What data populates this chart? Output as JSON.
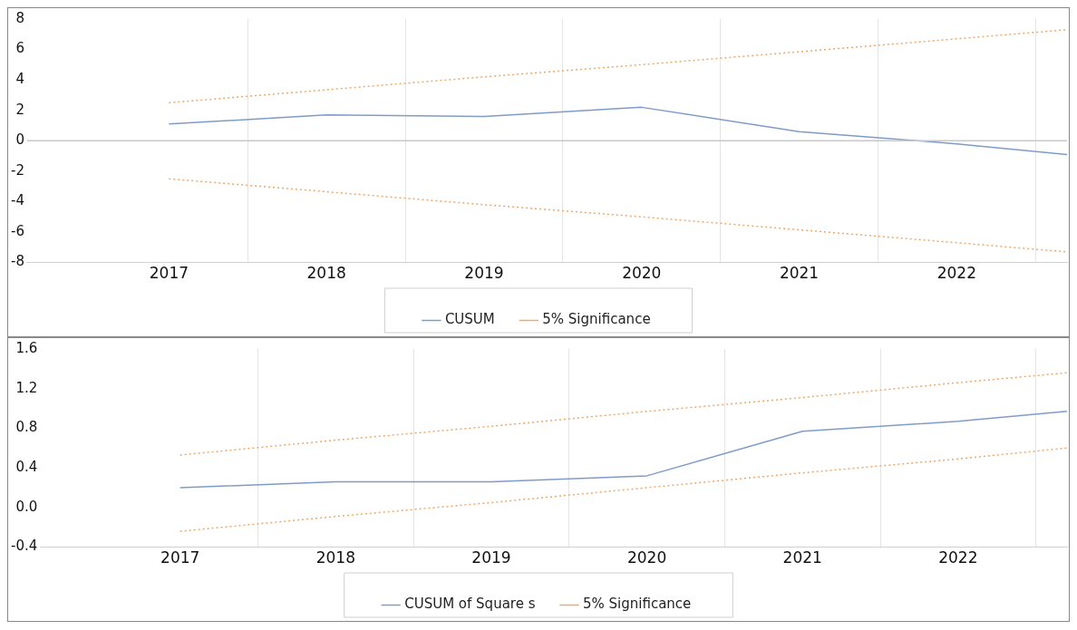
{
  "chart_data": [
    {
      "type": "line",
      "x": [
        2017,
        2018,
        2019,
        2020,
        2021,
        2022,
        2022.7
      ],
      "series": [
        {
          "name": "CUSUM",
          "color": "#7f9cc8",
          "line_style": "solid",
          "values": [
            1.1,
            1.7,
            1.6,
            2.2,
            0.6,
            -0.2,
            -0.9
          ]
        },
        {
          "name": "5% Significance",
          "color": "#f0a868",
          "line_style": "dotted",
          "values": [
            2.5,
            3.35,
            4.2,
            5.0,
            5.85,
            6.7,
            7.3
          ]
        },
        {
          "color": "#f0a868",
          "line_style": "dotted",
          "values": [
            -2.5,
            -3.35,
            -4.2,
            -5.0,
            -5.85,
            -6.7,
            -7.3
          ]
        }
      ],
      "xlim": [
        2016.1,
        2022.7
      ],
      "xticks": [
        2017,
        {
          "value": 2017.5,
          "label": null
        },
        2018,
        {
          "value": 2018.5,
          "label": null
        },
        2019,
        {
          "value": 2019.5,
          "label": null
        },
        2020,
        {
          "value": 2020.5,
          "label": null
        },
        2021,
        {
          "value": 2021.5,
          "label": null
        },
        2022,
        {
          "value": 2022.5,
          "label": null
        }
      ],
      "ylim": [
        -8,
        8
      ],
      "yticks": [
        -8,
        -6,
        -4,
        -2,
        0,
        2,
        4,
        6,
        8
      ],
      "ref_lines": [
        {
          "axis": "y",
          "value": 0,
          "color": "#c8c8c8"
        }
      ],
      "grid": "x",
      "legend": "bottom",
      "marker": "none"
    },
    {
      "type": "line",
      "x": [
        2017,
        2018,
        2019,
        2020,
        2021,
        2022,
        2022.7
      ],
      "series": [
        {
          "name": "CUSUM of Square s",
          "color": "#7f9cc8",
          "line_style": "solid",
          "values": [
            0.2,
            0.26,
            0.26,
            0.32,
            0.77,
            0.87,
            0.97
          ]
        },
        {
          "name": "5% Significance",
          "color": "#f0a868",
          "line_style": "dotted",
          "values": [
            0.53,
            0.68,
            0.82,
            0.97,
            1.11,
            1.26,
            1.36
          ]
        },
        {
          "color": "#f0a868",
          "line_style": "dotted",
          "values": [
            -0.24,
            -0.09,
            0.05,
            0.2,
            0.35,
            0.49,
            0.6
          ]
        }
      ],
      "xlim": [
        2016.1,
        2022.7
      ],
      "xticks": [
        2017,
        {
          "value": 2017.5,
          "label": null
        },
        2018,
        {
          "value": 2018.5,
          "label": null
        },
        2019,
        {
          "value": 2019.5,
          "label": null
        },
        2020,
        {
          "value": 2020.5,
          "label": null
        },
        2021,
        {
          "value": 2021.5,
          "label": null
        },
        2022,
        {
          "value": 2022.5,
          "label": null
        }
      ],
      "ylim": [
        -0.4,
        1.6
      ],
      "yticks": [
        {
          "value": -0.4,
          "label": "-0.4"
        },
        {
          "value": 0,
          "label": "0.0"
        },
        {
          "value": 0.4,
          "label": "0.4"
        },
        {
          "value": 0.8,
          "label": "0.8"
        },
        {
          "value": 1.2,
          "label": "1.2"
        },
        {
          "value": 1.6,
          "label": "1.6"
        }
      ],
      "grid": "x",
      "legend": "bottom",
      "marker": "none"
    }
  ]
}
